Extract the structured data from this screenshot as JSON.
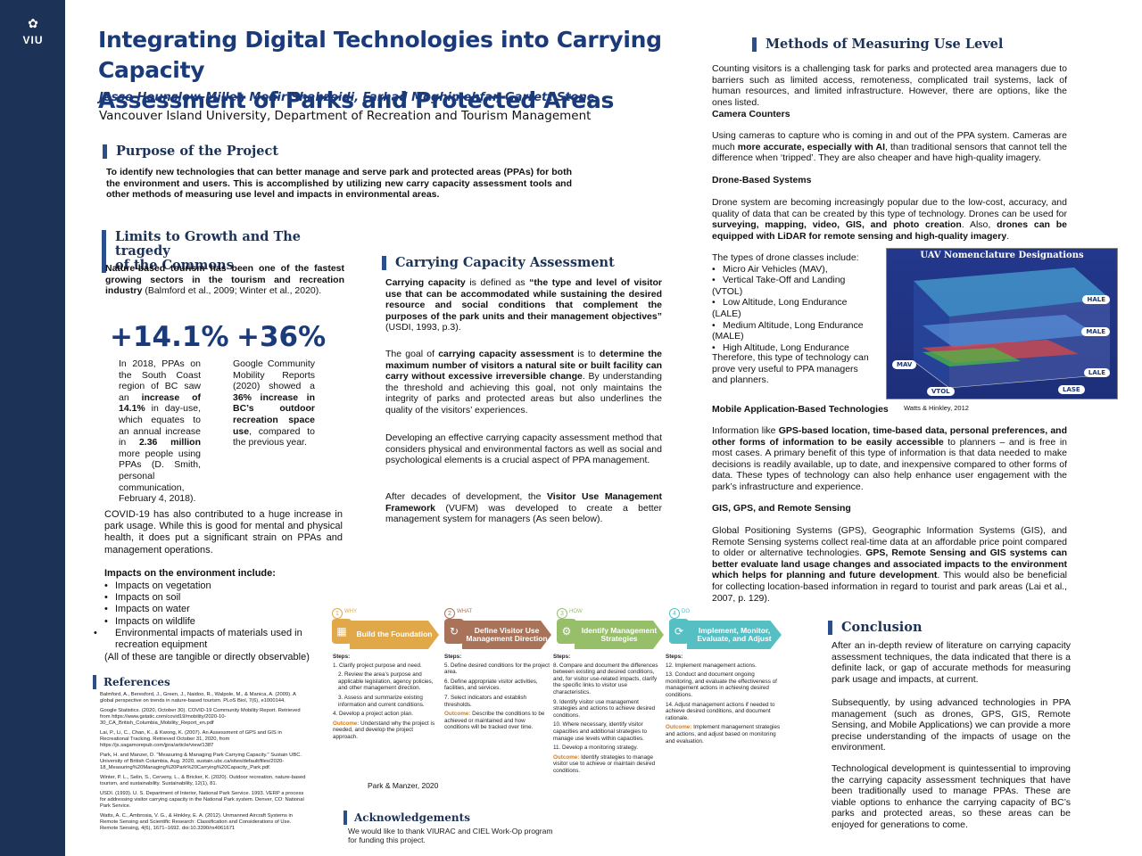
{
  "logo": {
    "text": "VIU"
  },
  "header": {
    "title_line1": "Integrating Digital Technologies into Carrying Capacity",
    "title_line2": "Assessment of Parks and Protected Areas",
    "authors": "Jesse Hounslow-Miller, Monir Shahzeidi, Farhad Moghimehfar, Garrett Stone",
    "affiliation": "Vancouver Island University, Department of Recreation and Tourism Management"
  },
  "purpose": {
    "heading": "Purpose of the Project",
    "text": "To identify new technologies that can better manage and serve park and protected areas (PPAs) for both the environment and users. This is accomplished by utilizing new carry capacity assessment tools and other methods of measuring use level and impacts in environmental areas."
  },
  "limits": {
    "heading_line1": "Limits to Growth and The tragedy",
    "heading_line2": "of the Commons",
    "intro_bold": "Nature-based tourism has been one of the fastest growing sectors in the tourism and recreation industry",
    "intro_rest": " (Balmford et al., 2009; Winter et al., 2020).",
    "stat1": {
      "value": "+14.1%",
      "t1": "In 2018, PPAs on the South Coast region of BC saw an ",
      "b1": "increase of 14.1%",
      "t2": " in day-use, which equates to an annual increase in ",
      "b2": "2.36 million",
      "t3": " more people using PPAs (D. Smith, personal communication, February 4, 2018)."
    },
    "stat2": {
      "value": "+36%",
      "t1": "Google Community Mobility Reports (2020) showed a ",
      "b1": "36% increase in BC’s outdoor recreation space use",
      "t2": ", compared to the previous year."
    },
    "covid": "COVID-19 has also contributed to a huge increase in park usage. While this is good for mental and physical health, it does put a significant strain on PPAs and management operations.",
    "impacts_heading": "Impacts on the environment include:",
    "impacts": [
      "Impacts on vegetation",
      "Impacts on soil",
      "Impacts on water",
      "Impacts on wildlife",
      "Environmental impacts of materials used in recreation equipment"
    ],
    "impacts_note": "(All of these are tangible or directly observable)"
  },
  "references": {
    "heading": "References",
    "items": [
      "Balmford, A., Beresford, J., Green, J., Naidoo, R., Walpole, M., & Manica, A. (2009). A global perspective on trends in nature-based tourism. PLoS Biol, 7(6), e1000144.",
      "Google Statistics. (2020, October 30). COVID-19 Community Mobility Report. Retrieved from https://www.gstatic.com/covid19/mobility/2020-10-30_CA_British_Columbia_Mobility_Report_en.pdf",
      "Lai, P., Li, C., Chan, K., & Kwong, K. (2007). An Assessment of GPS and GIS in Recreational Tracking. Retrieved October 31, 2020, from https://js.sagamorepub.com/jpra/article/view/1387",
      "Park, H. and Manzer, D. \"Measuring & Managing Park Carrying Capacity.\" Sustain UBC. University of British Columbia, Aug. 2020, sustain.ubc.ca/sites/default/files/2020-18_Measuring%20Managing%20Park%20Carrying%20Capacity_Park.pdf.",
      "Winter, P. L., Selin, S., Cerveny, L., & Bricker, K. (2020). Outdoor recreation, nature-based tourism, and sustainability. Sustainability, 12(1), 81.",
      "USDI. (1993). U. S. Department of Interior, National Park Service. 1993. VERP a process for addressing visitor carrying capacity in the National Park system. Denver, CO: National Park Service.",
      "Watts, A. C., Ambrosia, V. G., & Hinkley, E. A. (2012). Unmanned Aircraft Systems in Remote Sensing and Scientific Research: Classification and Considerations of Use. Remote Sensing, 4(6), 1671–1692. doi:10.3390/rs4061671"
    ]
  },
  "carrying": {
    "heading": "Carrying Capacity Assessment",
    "p1_b1": "Carrying capacity",
    "p1_t1": " is defined as ",
    "p1_b2": "“the type and level of visitor use that can be accommodated while sustaining the desired resource and social conditions that complement the purposes of the park units and their management objectives”",
    "p1_t2": " (USDI, 1993, p.3).",
    "p2_t1": "The goal of ",
    "p2_b1": "carrying capacity assessment",
    "p2_t2": " is to ",
    "p2_b2": "determine the maximum number of visitors a natural site or built facility can carry without excessive irreversible change",
    "p2_t3": ". By understanding the threshold and achieving this goal, not only maintains the integrity of parks and protected areas but also underlines the quality of the visitors’ experiences.",
    "p3": "Developing an effective carrying capacity assessment method that considers physical and environmental factors as well as social and psychological elements is a crucial aspect of PPA management.",
    "p4_t1": "After decades of development, the ",
    "p4_b1": "Visitor Use Management Framework",
    "p4_t2": " (VUFM) was developed to create a better management system for managers (As seen below)."
  },
  "framework": {
    "caption": "Park & Manzer, 2020",
    "steps": [
      {
        "num": "1",
        "tag": "WHY",
        "label": "Build the Foundation",
        "color": "#e0a848",
        "steps_label": "Steps:",
        "items": [
          "1. Clarify project purpose and need.",
          "2. Review the area’s purpose and applicable legislation, agency policies, and other management direction.",
          "3. Assess and summarize existing information and current conditions.",
          "4. Develop a project action plan."
        ],
        "outcome_label": "Outcome:",
        "outcome": " Understand why the project is needed, and develop the project approach."
      },
      {
        "num": "2",
        "tag": "WHAT",
        "label": "Define Visitor Use Management Direction",
        "color": "#a9735a",
        "steps_label": "Steps:",
        "items": [
          "5. Define desired conditions for the project area.",
          "6. Define appropriate visitor activities, facilities, and services.",
          "7. Select indicators and establish thresholds."
        ],
        "outcome_label": "Outcome:",
        "outcome": " Describe the conditions to be achieved or maintained and how conditions will be tracked over time."
      },
      {
        "num": "3",
        "tag": "HOW",
        "label": "Identify Management Strategies",
        "color": "#97bf6a",
        "steps_label": "Steps:",
        "items": [
          "8. Compare and document the differences between existing and desired conditions, and, for visitor use-related impacts, clarify the specific links to visitor use characteristics.",
          "9. Identify visitor use management strategies and actions to achieve desired conditions.",
          "10. Where necessary, identify visitor capacities and additional strategies to manage use levels within capacities.",
          "11. Develop a monitoring strategy."
        ],
        "outcome_label": "Outcome:",
        "outcome": " Identify strategies to manage visitor use to achieve or maintain desired conditions."
      },
      {
        "num": "4",
        "tag": "DO",
        "label": "Implement, Monitor, Evaluate, and Adjust",
        "color": "#55bfc4",
        "steps_label": "Steps:",
        "items": [
          "12. Implement management actions.",
          "13. Conduct and document ongoing monitoring, and evaluate the effectiveness of management actions in achieving desired conditions.",
          "14. Adjust management actions if needed to achieve desired conditions, and document rationale."
        ],
        "outcome_label": "Outcome:",
        "outcome": " Implement management strategies and actions, and adjust based on monitoring and evaluation."
      }
    ]
  },
  "acknowledgements": {
    "heading": "Acknowledgements",
    "text": "We would like to thank VIURAC and CIEL Work-Op program for funding this project."
  },
  "methods": {
    "heading": "Methods of Measuring Use Level",
    "intro": "Counting visitors is a challenging task for parks and protected area managers due to barriers such as limited access, remoteness, complicated trail systems, lack of human resources, and limited infrastructure. However, there are options, like the ones listed.",
    "camera_heading": "Camera Counters",
    "camera_t1": "Using cameras to capture who is coming in and out of the PPA system. Cameras are much ",
    "camera_b1": "more accurate, especially with AI",
    "camera_t2": ", than traditional sensors that cannot tell the difference when ‘tripped’. They are also cheaper and have high-quality imagery.",
    "drone_heading": "Drone-Based Systems",
    "drone_t1": "Drone system are becoming increasingly popular due to the low-cost, accuracy, and quality of data that can be created by this type of technology. Drones can be used for ",
    "drone_b1": "surveying, mapping, video, GIS, and photo creation",
    "drone_t2": ". Also, ",
    "drone_b2": "drones can be equipped with LiDAR for remote sensing and high-quality imagery",
    "drone_t3": ".",
    "drone_types_intro": "The types of drone classes include:",
    "drone_types": [
      "Micro Air Vehicles (MAV),",
      "Vertical Take-Off and Landing (VTOL)",
      "Low Altitude, Long Endurance (LALE)",
      "Medium Altitude, Long Endurance (MALE)",
      "High Altitude, Long Endurance"
    ],
    "drone_conclusion": "Therefore, this type of technology can prove very useful to PPA managers and planners.",
    "uav_title": "UAV Nomenclature Designations",
    "uav_labels": [
      "HALE",
      "MALE",
      "LALE",
      "LASE",
      "VTOL",
      "MAV"
    ],
    "uav_credit": "Watts & Hinkley, 2012",
    "mobile_heading": "Mobile Application-Based Technologies",
    "mobile_t1": "Information like ",
    "mobile_b1": "GPS-based location, time-based data, personal preferences, and other forms of information to be easily accessible",
    "mobile_t2": " to planners – and is free in most cases. A primary benefit of this type of information is that data needed to make decisions is readily available, up to date, and inexpensive compared to other forms of data. These types of technology can also help enhance user engagement with the park’s infrastructure and experience.",
    "gis_heading": "GIS, GPS, and Remote Sensing",
    "gis_t1": "Global Positioning Systems (GPS), Geographic Information Systems (GIS), and Remote Sensing systems  collect real-time data at an affordable price point compared to older or alternative technologies. ",
    "gis_b1": "GPS, Remote Sensing and GIS systems can better evaluate land usage changes and associated impacts to the environment which helps for planning and future development",
    "gis_t2": ". This would also be beneficial for collecting location-based information in regard to tourist and park areas (Lai et al., 2007, p. 129)."
  },
  "conclusion": {
    "heading": "Conclusion",
    "p1": "After an in-depth review of literature on carrying capacity assessment techniques, the data indicated that there is a definite lack, or gap of accurate methods for measuring park usage and impacts, at current.",
    "p2": "Subsequently, by using advanced technologies in PPA management (such as drones, GPS, GIS, Remote Sensing, and Mobile Applications) we can provide a more precise understanding of the impacts of usage on the environment.",
    "p3": "Technological development is quintessential to improving the carrying capacity assessment techniques that have been traditionally used to manage PPAs. These are viable options to enhance the carrying capacity of BC’s parks and protected areas, so these areas can be enjoyed for generations to come."
  }
}
